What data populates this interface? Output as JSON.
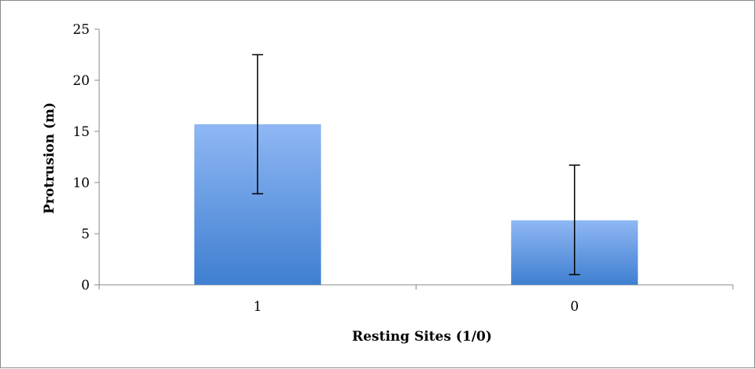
{
  "chart_data": {
    "type": "bar",
    "categories": [
      "1",
      "0"
    ],
    "values": [
      15.7,
      6.3
    ],
    "error_bars": [
      {
        "low": 8.9,
        "high": 22.5
      },
      {
        "low": 1.0,
        "high": 11.7
      }
    ],
    "title": "",
    "xlabel": "Resting Sites (1/0)",
    "ylabel": "Protrusion (m)",
    "ylim": [
      0,
      25
    ],
    "yticks": [
      "0",
      "5",
      "10",
      "15",
      "20",
      "25"
    ],
    "grid": false,
    "legend": "none",
    "bar_color_top": "#8FB7F4",
    "bar_color_bottom": "#3F7FD0"
  }
}
